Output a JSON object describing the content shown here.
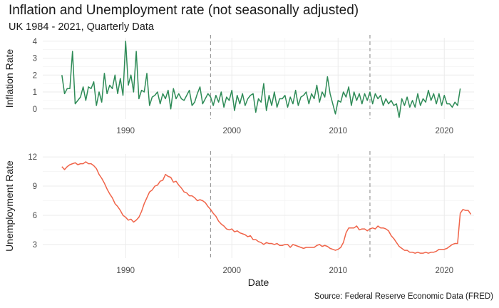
{
  "title": "Inflation and Unemployment rate (not seasonally adjusted)",
  "subtitle": "UK 1984 - 2021, Quarterly Data",
  "caption": "Source: Federal Reserve Economic Data (FRED)",
  "colors": {
    "inflation": "#2e8b57",
    "unemployment": "#f06449",
    "vline": "#999999",
    "grid": "#ebebeb"
  },
  "chart_data": [
    {
      "type": "line",
      "ylabel": "Inflation Rate",
      "xlabel": "",
      "xlim": [
        1982.2,
        2022.8
      ],
      "ylim": [
        -0.6,
        4.2
      ],
      "xticks": [
        1990,
        2000,
        2010,
        2020
      ],
      "yticks": [
        0,
        1,
        2,
        3,
        4
      ],
      "vlines": [
        1998,
        2013
      ],
      "grid": true,
      "series": [
        {
          "start": 1984.0,
          "step": 0.25,
          "values": [
            2.0,
            0.9,
            1.2,
            1.2,
            3.4,
            0.3,
            0.5,
            0.7,
            1.3,
            0.5,
            1.3,
            1.2,
            1.6,
            0.2,
            1.0,
            0.4,
            2.1,
            0.9,
            1.4,
            1.2,
            2.0,
            0.9,
            1.8,
            0.8,
            4.0,
            1.4,
            2.0,
            1.0,
            3.4,
            0.6,
            1.1,
            1.0,
            2.1,
            0.2,
            0.7,
            0.8,
            1.0,
            0.3,
            0.9,
            0.6,
            1.1,
            0.0,
            1.2,
            0.6,
            0.9,
            0.6,
            0.5,
            0.8,
            1.1,
            0.2,
            0.4,
            0.9,
            1.3,
            0.3,
            0.6,
            0.9,
            0.7,
            0.2,
            0.8,
            0.4,
            1.0,
            0.1,
            0.7,
            0.5,
            1.1,
            -0.1,
            0.8,
            0.3,
            0.9,
            0.2,
            0.6,
            0.8,
            0.9,
            -0.2,
            0.6,
            0.4,
            1.5,
            -0.1,
            0.8,
            0.2,
            1.0,
            0.1,
            0.6,
            0.6,
            0.8,
            0.1,
            0.7,
            0.3,
            1.1,
            0.2,
            0.7,
            0.8,
            1.0,
            0.3,
            0.9,
            0.6,
            1.4,
            0.4,
            1.0,
            0.7,
            1.9,
            0.9,
            0.3,
            -0.3,
            0.5,
            0.4,
            1.0,
            0.7,
            1.3,
            0.2,
            1.0,
            0.5,
            0.9,
            0.3,
            0.9,
            0.5,
            1.0,
            0.3,
            0.9,
            0.6,
            0.8,
            0.2,
            0.6,
            0.3,
            0.5,
            0.2,
            0.3,
            -0.5,
            0.6,
            0.2,
            0.7,
            0.1,
            0.5,
            0.1,
            0.9,
            0.2,
            0.6,
            0.4,
            1.1,
            0.5,
            0.9,
            0.3,
            0.9,
            0.2,
            0.8,
            0.3,
            0.3,
            0.1,
            0.4,
            0.2,
            1.2
          ]
        }
      ]
    },
    {
      "type": "line",
      "ylabel": "Unemployment Rate",
      "xlabel": "Date",
      "xlim": [
        1982.2,
        2022.8
      ],
      "ylim": [
        1.6,
        12.3
      ],
      "xticks": [
        1990,
        2000,
        2010,
        2020
      ],
      "yticks": [
        3,
        6,
        9,
        12
      ],
      "vlines": [
        1998,
        2013
      ],
      "grid": true,
      "series": [
        {
          "start": 1984.0,
          "step": 0.25,
          "values": [
            11.0,
            10.7,
            11.0,
            11.2,
            11.3,
            11.4,
            11.2,
            11.3,
            11.3,
            11.5,
            11.3,
            11.3,
            11.1,
            10.8,
            10.2,
            9.8,
            9.3,
            8.7,
            8.2,
            7.8,
            7.2,
            6.9,
            6.5,
            6.0,
            5.8,
            5.5,
            5.6,
            5.3,
            5.5,
            5.8,
            6.4,
            7.2,
            7.8,
            8.4,
            8.6,
            9.0,
            9.1,
            9.5,
            9.6,
            10.2,
            10.0,
            9.9,
            9.4,
            9.5,
            9.1,
            8.8,
            8.4,
            8.3,
            8.0,
            8.0,
            7.8,
            7.5,
            7.6,
            7.5,
            7.3,
            6.9,
            6.6,
            6.2,
            5.9,
            5.4,
            5.1,
            4.9,
            4.6,
            4.5,
            4.6,
            4.3,
            4.4,
            4.2,
            4.1,
            4.0,
            3.8,
            3.9,
            3.5,
            3.5,
            3.3,
            3.2,
            3.0,
            3.2,
            3.1,
            3.1,
            3.0,
            3.1,
            2.9,
            2.9,
            3.0,
            3.0,
            2.7,
            3.0,
            2.9,
            2.8,
            2.7,
            2.6,
            2.7,
            2.7,
            2.7,
            2.7,
            2.9,
            3.0,
            2.8,
            2.9,
            2.8,
            2.6,
            2.5,
            2.4,
            2.5,
            2.7,
            3.2,
            4.2,
            4.7,
            4.7,
            4.7,
            4.9,
            4.5,
            4.6,
            4.6,
            4.4,
            4.6,
            4.7,
            4.6,
            4.9,
            4.7,
            4.7,
            4.6,
            4.4,
            3.9,
            3.6,
            3.2,
            2.8,
            2.6,
            2.4,
            2.4,
            2.2,
            2.2,
            2.1,
            2.2,
            2.1,
            2.1,
            2.2,
            2.1,
            2.2,
            2.2,
            2.3,
            2.5,
            2.5,
            2.5,
            2.6,
            2.8,
            3.0,
            3.1,
            3.1,
            6.2,
            6.6,
            6.5,
            6.5,
            6.1
          ]
        }
      ]
    }
  ]
}
